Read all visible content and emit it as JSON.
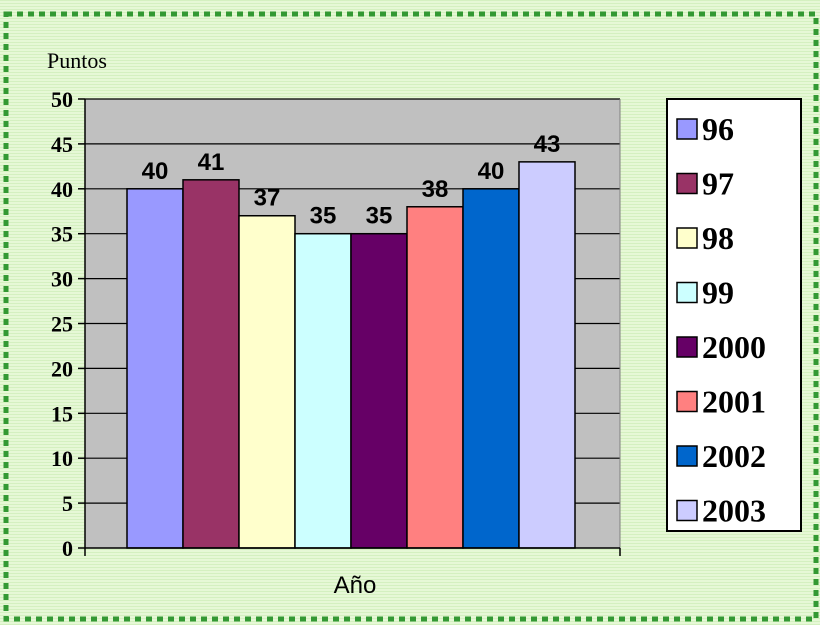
{
  "chart_data": {
    "type": "bar",
    "title": "",
    "ylabel": "Puntos",
    "xlabel": "Año",
    "ylim": [
      0,
      50
    ],
    "yticks": [
      0,
      5,
      10,
      15,
      20,
      25,
      30,
      35,
      40,
      45,
      50
    ],
    "grid": true,
    "legend_placement": "right",
    "series": [
      {
        "name": "96",
        "value": 40,
        "color": "#9999ff"
      },
      {
        "name": "97",
        "value": 41,
        "color": "#993366"
      },
      {
        "name": "98",
        "value": 37,
        "color": "#ffffcc"
      },
      {
        "name": "99",
        "value": 35,
        "color": "#ccffff"
      },
      {
        "name": "2000",
        "value": 35,
        "color": "#660066"
      },
      {
        "name": "2001",
        "value": 38,
        "color": "#ff8080"
      },
      {
        "name": "2002",
        "value": 40,
        "color": "#0066cc"
      },
      {
        "name": "2003",
        "value": 43,
        "color": "#ccccff"
      }
    ],
    "plot_background": "#c0c0c0",
    "frame_border_color": "#339933"
  }
}
